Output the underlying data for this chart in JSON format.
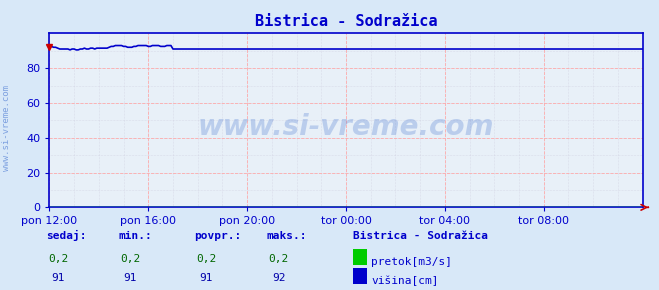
{
  "title": "Bistrica - Sodražica",
  "bg_color": "#d8e8f8",
  "plot_bg_color": "#e8f0f8",
  "x_labels": [
    "pon 12:00",
    "pon 16:00",
    "pon 20:00",
    "tor 00:00",
    "tor 04:00",
    "tor 08:00"
  ],
  "y_ticks": [
    0,
    20,
    40,
    60,
    80
  ],
  "ylim": [
    0,
    100
  ],
  "xlim": [
    0,
    288
  ],
  "n_points": 289,
  "visina_color": "#0000cc",
  "pretok_color": "#00cc00",
  "grid_color_major": "#ffaaaa",
  "grid_color_minor": "#ccccdd",
  "arrow_color": "#cc0000",
  "watermark": "www.si-vreme.com",
  "watermark_color": "#3366cc",
  "watermark_alpha": 0.25,
  "sidebar_text": "www.si-vreme.com",
  "sidebar_color": "#3366cc",
  "bottom_labels": [
    "sedaj:",
    "min.:",
    "povpr.:",
    "maks.:"
  ],
  "bottom_values_pretok": [
    "0,2",
    "0,2",
    "0,2",
    "0,2"
  ],
  "bottom_values_visina": [
    "91",
    "91",
    "91",
    "92"
  ],
  "legend_title": "Bistrica - Sodražica",
  "legend_pretok_label": "pretok[m3/s]",
  "legend_visina_label": "višina[cm]",
  "x_tick_positions": [
    0,
    48,
    96,
    144,
    192,
    240
  ],
  "title_color": "#0000cc",
  "title_fontsize": 11,
  "tick_color": "#0000cc",
  "tick_fontsize": 8,
  "bottom_label_color": "#0000cc",
  "bottom_value_color_pretok": "#006600",
  "bottom_value_color_visina": "#0000aa",
  "spine_color": "#0000cc"
}
